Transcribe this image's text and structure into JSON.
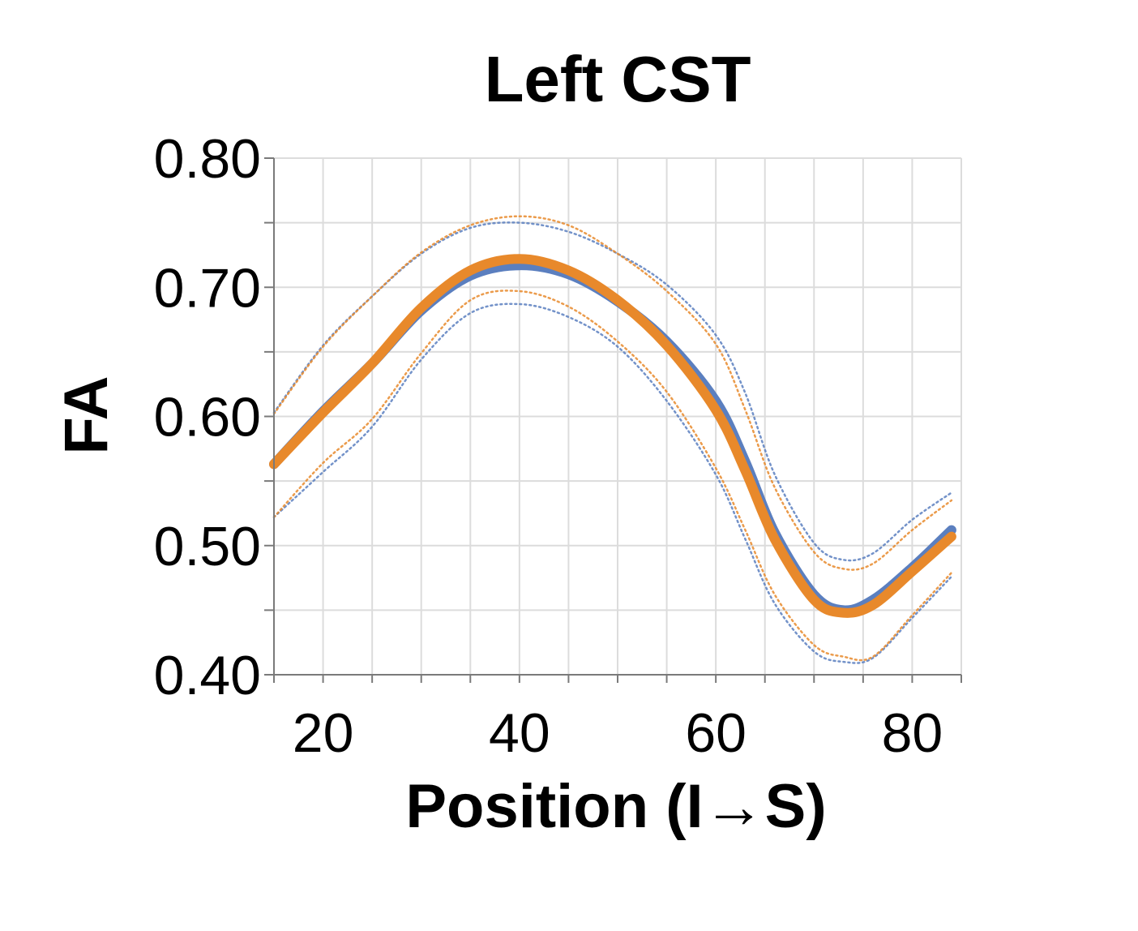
{
  "chart_data": {
    "type": "line",
    "title": "Left CST",
    "xlabel": "Position (I→S)",
    "ylabel": "FA",
    "xlim": [
      15,
      85
    ],
    "ylim": [
      0.4,
      0.8
    ],
    "xticks": [
      20,
      40,
      60,
      80
    ],
    "xtick_labels": [
      "20",
      "40",
      "60",
      "80"
    ],
    "yticks": [
      0.4,
      0.5,
      0.6,
      0.7,
      0.8
    ],
    "ytick_labels": [
      "0.40",
      "0.50",
      "0.60",
      "0.70",
      "0.80"
    ],
    "x_minor_step": 5,
    "y_minor_step": 0.05,
    "grid": true,
    "legend": "none",
    "colors": {
      "blue": "#5b7fbf",
      "orange": "#e8892b"
    },
    "series": [
      {
        "style": "solid",
        "color": "#5b7fbf",
        "x": [
          15,
          20,
          25,
          30,
          35,
          40,
          45,
          50,
          55,
          60,
          63,
          66,
          70,
          73,
          76,
          80,
          84
        ],
        "y": [
          0.563,
          0.604,
          0.641,
          0.682,
          0.709,
          0.717,
          0.71,
          0.689,
          0.658,
          0.612,
          0.565,
          0.51,
          0.462,
          0.45,
          0.458,
          0.483,
          0.512
        ]
      },
      {
        "style": "solid",
        "color": "#e8892b",
        "x": [
          15,
          20,
          25,
          30,
          35,
          40,
          45,
          50,
          55,
          60,
          63,
          66,
          70,
          73,
          76,
          80,
          84
        ],
        "y": [
          0.563,
          0.603,
          0.641,
          0.684,
          0.713,
          0.722,
          0.713,
          0.69,
          0.655,
          0.605,
          0.558,
          0.505,
          0.458,
          0.448,
          0.454,
          0.48,
          0.507
        ]
      },
      {
        "style": "dotted",
        "color": "#5b7fbf",
        "x": [
          15,
          20,
          25,
          30,
          35,
          40,
          45,
          50,
          55,
          60,
          63,
          66,
          70,
          73,
          76,
          80,
          84
        ],
        "y": [
          0.603,
          0.655,
          0.693,
          0.726,
          0.746,
          0.75,
          0.743,
          0.726,
          0.702,
          0.663,
          0.618,
          0.555,
          0.502,
          0.489,
          0.494,
          0.52,
          0.541
        ]
      },
      {
        "style": "dotted",
        "color": "#e8892b",
        "x": [
          15,
          20,
          25,
          30,
          35,
          40,
          45,
          50,
          55,
          60,
          63,
          66,
          70,
          73,
          76,
          80,
          84
        ],
        "y": [
          0.602,
          0.654,
          0.693,
          0.727,
          0.748,
          0.755,
          0.748,
          0.726,
          0.697,
          0.656,
          0.605,
          0.545,
          0.495,
          0.482,
          0.486,
          0.512,
          0.535
        ]
      },
      {
        "style": "dotted",
        "color": "#5b7fbf",
        "x": [
          15,
          20,
          25,
          30,
          35,
          40,
          45,
          50,
          55,
          60,
          63,
          66,
          70,
          73,
          76,
          80,
          84
        ],
        "y": [
          0.522,
          0.557,
          0.592,
          0.644,
          0.68,
          0.687,
          0.677,
          0.654,
          0.612,
          0.555,
          0.505,
          0.455,
          0.418,
          0.41,
          0.413,
          0.444,
          0.476
        ]
      },
      {
        "style": "dotted",
        "color": "#e8892b",
        "x": [
          15,
          20,
          25,
          30,
          35,
          40,
          45,
          50,
          55,
          60,
          63,
          66,
          70,
          73,
          76,
          80,
          84
        ],
        "y": [
          0.522,
          0.564,
          0.598,
          0.649,
          0.69,
          0.697,
          0.685,
          0.658,
          0.619,
          0.56,
          0.512,
          0.462,
          0.423,
          0.414,
          0.414,
          0.446,
          0.479
        ]
      }
    ]
  }
}
